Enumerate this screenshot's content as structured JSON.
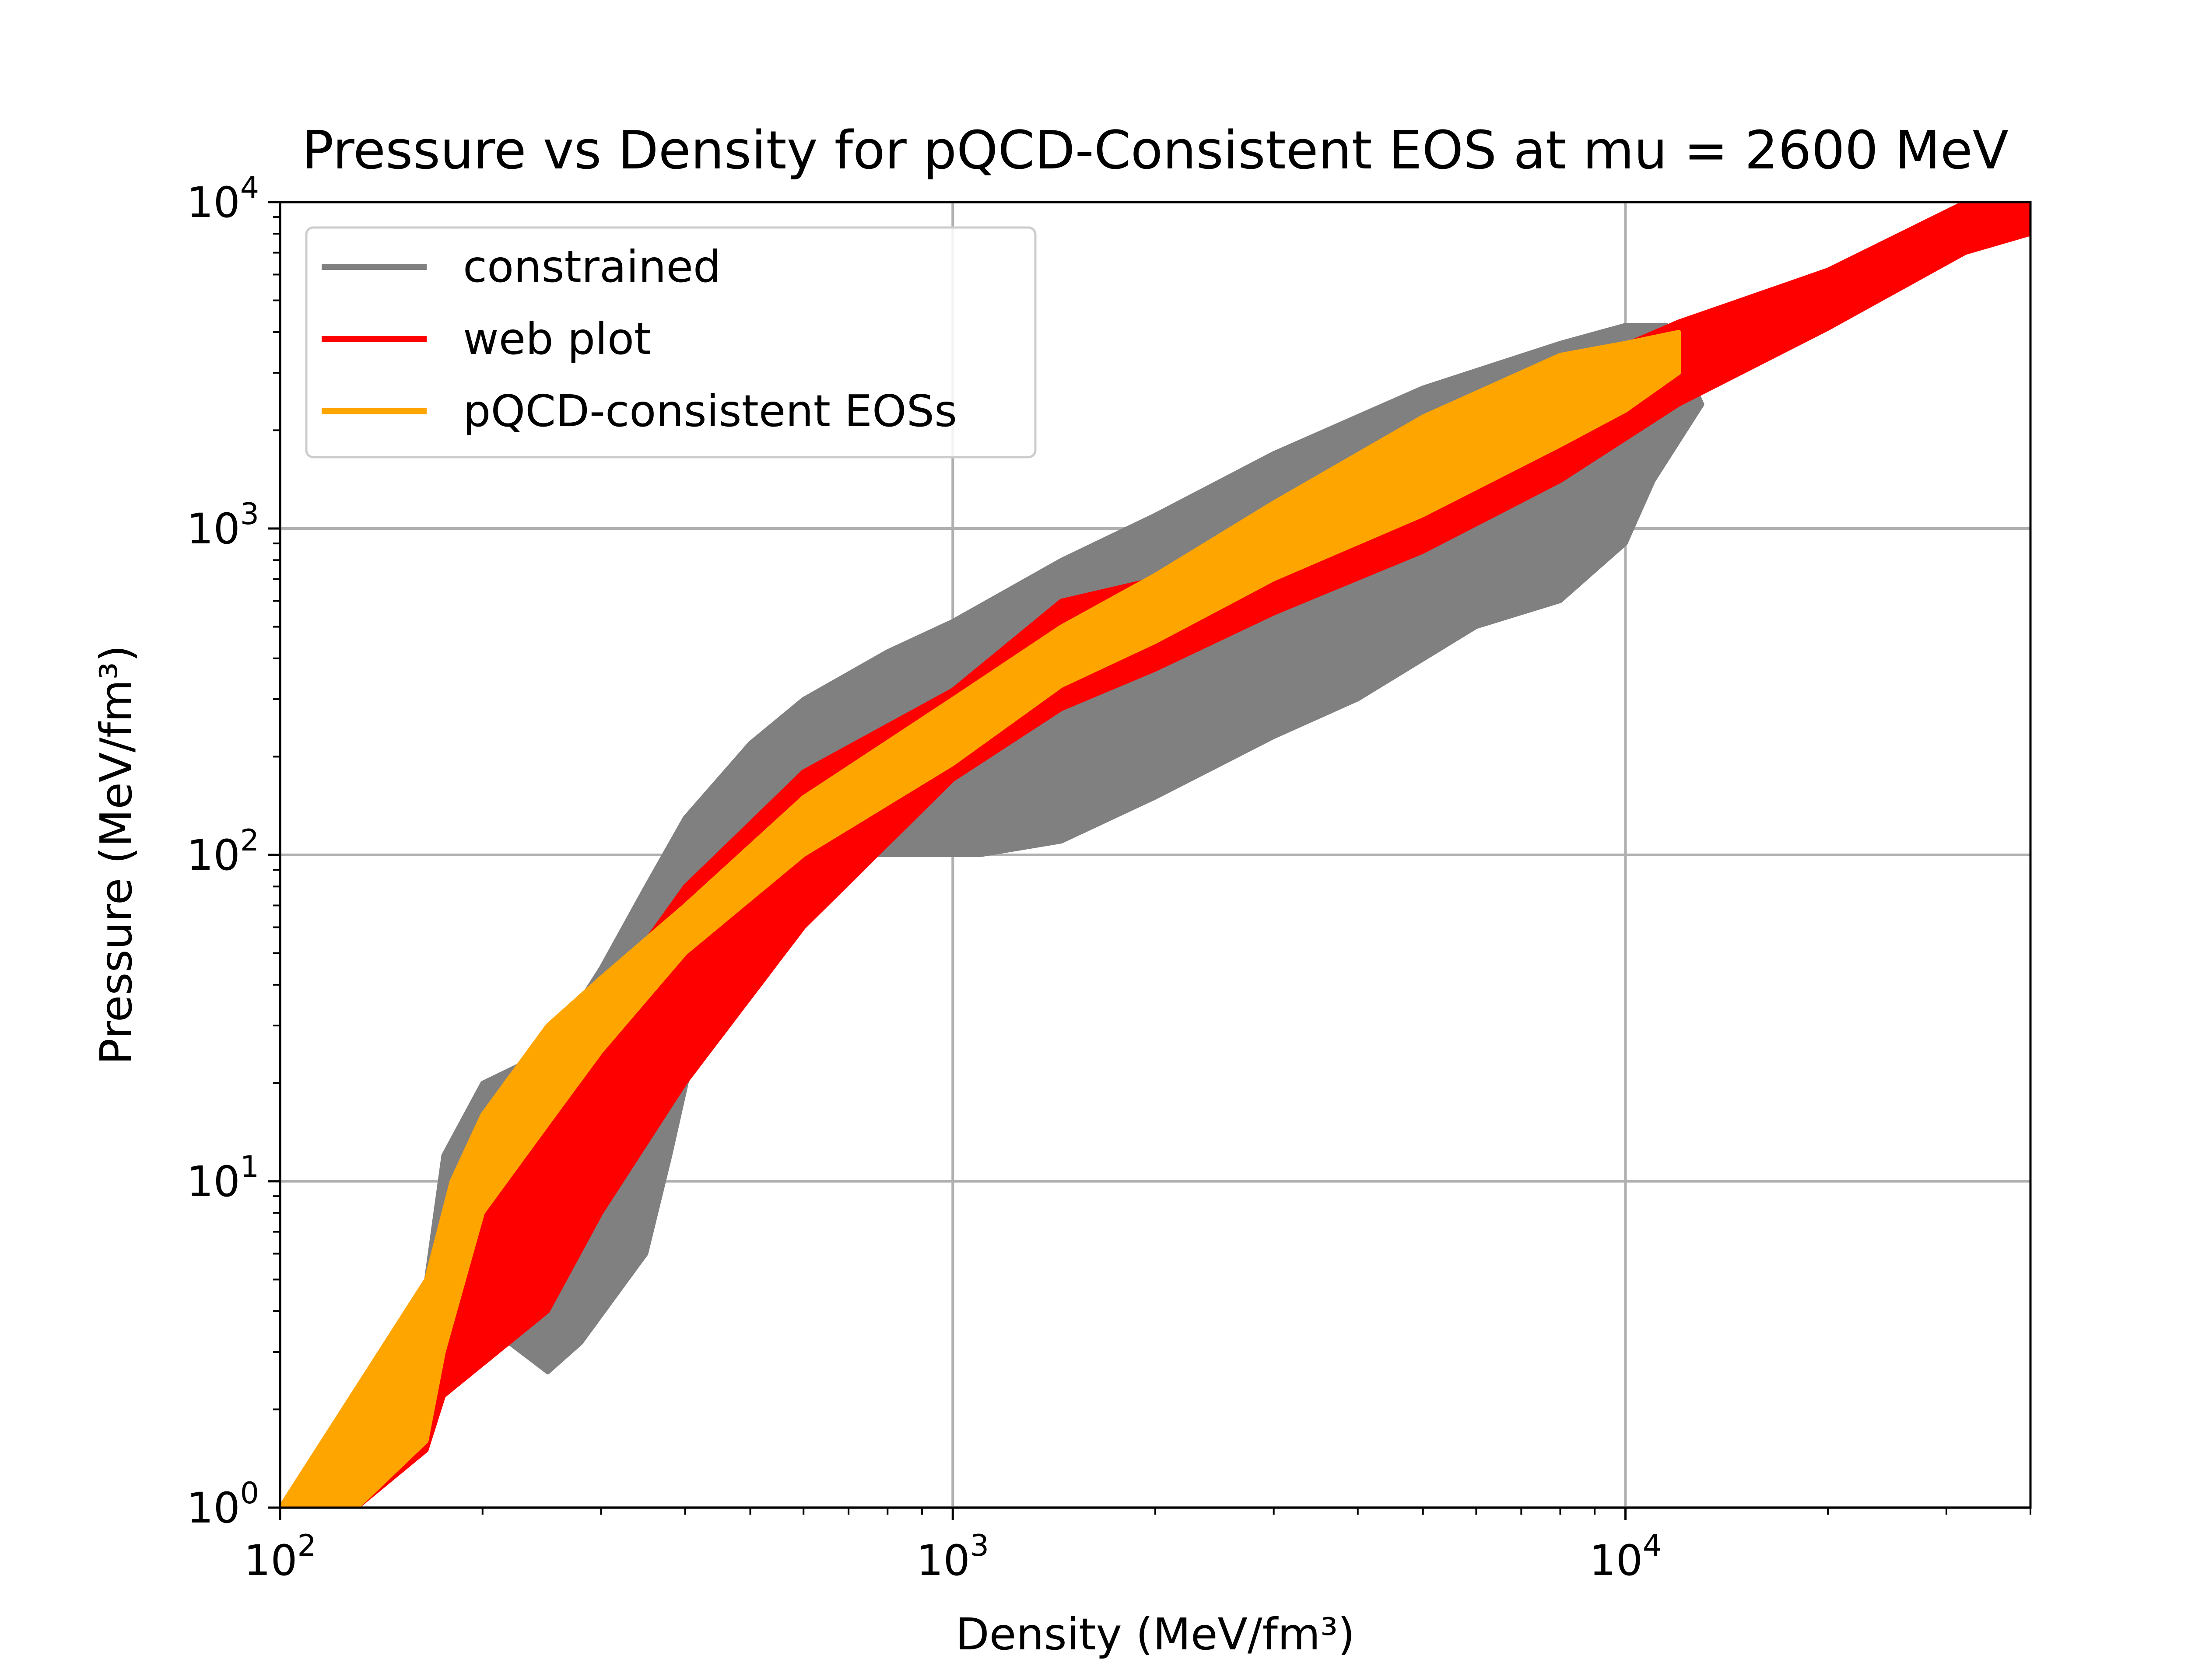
{
  "chart_data": {
    "type": "area",
    "title": "Pressure vs Density for pQCD-Consistent EOS at mu = 2600 MeV",
    "xlabel": "Density (MeV/fm³)",
    "ylabel": "Pressure (MeV/fm³)",
    "xscale": "log",
    "yscale": "log",
    "xlim": [
      100,
      40000
    ],
    "ylim": [
      1,
      10000
    ],
    "grid": true,
    "legend_position": "upper-left",
    "x_ticks": [
      {
        "base": "10",
        "exp": "2",
        "value": 100
      },
      {
        "base": "10",
        "exp": "3",
        "value": 1000
      },
      {
        "base": "10",
        "exp": "4",
        "value": 10000
      }
    ],
    "y_ticks": [
      {
        "base": "10",
        "exp": "0",
        "value": 1
      },
      {
        "base": "10",
        "exp": "1",
        "value": 10
      },
      {
        "base": "10",
        "exp": "2",
        "value": 100
      },
      {
        "base": "10",
        "exp": "3",
        "value": 1000
      },
      {
        "base": "10",
        "exp": "4",
        "value": 10000
      }
    ],
    "series": [
      {
        "name": "constrained",
        "color": "#808080",
        "kind": "band",
        "upper": [
          [
            165,
            5
          ],
          [
            175,
            12
          ],
          [
            200,
            20
          ],
          [
            250,
            25
          ],
          [
            300,
            45
          ],
          [
            350,
            80
          ],
          [
            400,
            130
          ],
          [
            500,
            220
          ],
          [
            600,
            300
          ],
          [
            800,
            420
          ],
          [
            1000,
            520
          ],
          [
            1450,
            800
          ],
          [
            2000,
            1100
          ],
          [
            3000,
            1700
          ],
          [
            5000,
            2700
          ],
          [
            8000,
            3700
          ],
          [
            10000,
            4200
          ],
          [
            11500,
            4200
          ]
        ],
        "lower": [
          [
            250,
            2.6
          ],
          [
            280,
            3.2
          ],
          [
            350,
            6
          ],
          [
            380,
            12
          ],
          [
            420,
            30
          ],
          [
            500,
            55
          ],
          [
            600,
            100
          ],
          [
            800,
            100
          ],
          [
            1100,
            100
          ],
          [
            1450,
            110
          ],
          [
            2000,
            150
          ],
          [
            3000,
            230
          ],
          [
            4000,
            300
          ],
          [
            6000,
            500
          ],
          [
            8000,
            600
          ],
          [
            10000,
            900
          ],
          [
            11000,
            1400
          ],
          [
            13000,
            2400
          ]
        ]
      },
      {
        "name": "web plot",
        "color": "#ff0000",
        "kind": "band",
        "upper": [
          [
            130,
            1
          ],
          [
            165,
            2
          ],
          [
            175,
            5
          ],
          [
            200,
            8
          ],
          [
            250,
            20
          ],
          [
            300,
            35
          ],
          [
            400,
            80
          ],
          [
            600,
            180
          ],
          [
            1000,
            320
          ],
          [
            1450,
            600
          ],
          [
            2000,
            700
          ],
          [
            3000,
            1100
          ],
          [
            5000,
            1800
          ],
          [
            8000,
            3000
          ],
          [
            12000,
            4300
          ],
          [
            20000,
            6200
          ],
          [
            32000,
            10000
          ],
          [
            40000,
            10000
          ]
        ],
        "lower": [
          [
            130,
            1
          ],
          [
            165,
            1.5
          ],
          [
            175,
            2.2
          ],
          [
            250,
            4
          ],
          [
            300,
            8
          ],
          [
            400,
            20
          ],
          [
            600,
            60
          ],
          [
            1000,
            170
          ],
          [
            1450,
            280
          ],
          [
            2000,
            370
          ],
          [
            3000,
            550
          ],
          [
            5000,
            850
          ],
          [
            8000,
            1400
          ],
          [
            12000,
            2400
          ],
          [
            20000,
            4100
          ],
          [
            32000,
            7000
          ],
          [
            40000,
            8000
          ]
        ]
      },
      {
        "name": "pQCD-consistent EOSs",
        "color": "#ffa500",
        "kind": "band",
        "upper": [
          [
            100,
            1
          ],
          [
            165,
            5
          ],
          [
            180,
            10
          ],
          [
            200,
            16
          ],
          [
            250,
            30
          ],
          [
            300,
            42
          ],
          [
            400,
            70
          ],
          [
            600,
            150
          ],
          [
            1000,
            300
          ],
          [
            1450,
            500
          ],
          [
            2000,
            720
          ],
          [
            3000,
            1200
          ],
          [
            5000,
            2200
          ],
          [
            8000,
            3400
          ],
          [
            10000,
            3700
          ],
          [
            12000,
            4000
          ]
        ],
        "lower": [
          [
            130,
            1
          ],
          [
            165,
            1.6
          ],
          [
            175,
            3
          ],
          [
            200,
            8
          ],
          [
            250,
            15
          ],
          [
            300,
            25
          ],
          [
            400,
            50
          ],
          [
            600,
            100
          ],
          [
            1000,
            190
          ],
          [
            1450,
            330
          ],
          [
            2000,
            450
          ],
          [
            3000,
            700
          ],
          [
            5000,
            1100
          ],
          [
            8000,
            1800
          ],
          [
            10000,
            2300
          ],
          [
            12000,
            3000
          ]
        ]
      }
    ]
  }
}
